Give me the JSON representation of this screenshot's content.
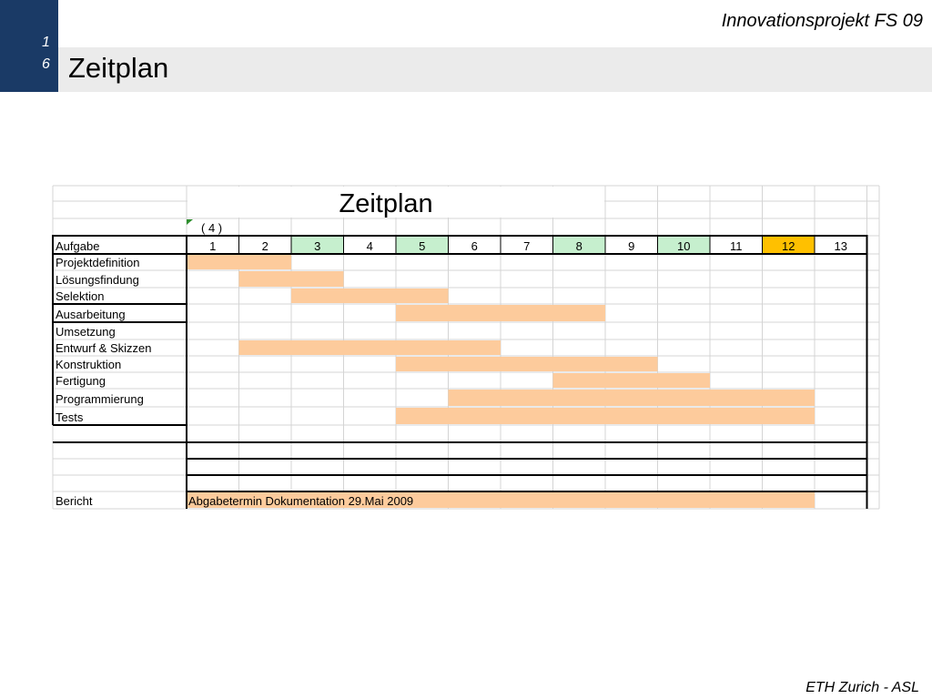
{
  "header": {
    "course": "Innovationsprojekt FS 09"
  },
  "slide_number": {
    "line1": "1",
    "line2": "6"
  },
  "title": "Zeitplan",
  "footer": "ETH Zurich - ASL",
  "sheet": {
    "title": "Zeitplan",
    "note": "( 4 )",
    "header_label": "Aufgabe",
    "weeks": [
      "1",
      "2",
      "3",
      "4",
      "5",
      "6",
      "7",
      "8",
      "9",
      "10",
      "11",
      "12",
      "13"
    ],
    "week_highlights": {
      "green": [
        "3",
        "5",
        "8",
        "10"
      ],
      "yellow": [
        "12"
      ]
    },
    "colors": {
      "bar": "#fdcb9c",
      "green": "#c6efce",
      "yellow": "#ffc000",
      "grid": "#d4d4d4",
      "border": "#000000"
    },
    "tasks": [
      {
        "name": "Projektdefinition",
        "start_week": 1,
        "end_week": 2
      },
      {
        "name": "Lösungsfindung",
        "start_week": 2,
        "end_week": 3
      },
      {
        "name": "Selektion",
        "start_week": 3,
        "end_week": 5
      },
      {
        "name": "Ausarbeitung",
        "start_week": 5,
        "end_week": 8
      },
      {
        "name": "Umsetzung",
        "start_week": null,
        "end_week": null
      },
      {
        "name": "Entwurf & Skizzen",
        "start_week": 2,
        "end_week": 6
      },
      {
        "name": "Konstruktion",
        "start_week": 5,
        "end_week": 9
      },
      {
        "name": "Fertigung",
        "start_week": 8,
        "end_week": 10
      },
      {
        "name": "Programmierung",
        "start_week": 6,
        "end_week": 12
      },
      {
        "name": "Tests",
        "start_week": 5,
        "end_week": 12
      },
      {
        "name": "",
        "start_week": null,
        "end_week": null
      },
      {
        "name": "",
        "start_week": null,
        "end_week": null
      },
      {
        "name": "",
        "start_week": null,
        "end_week": null
      },
      {
        "name": "",
        "start_week": null,
        "end_week": null
      }
    ],
    "report": {
      "label": "Bericht",
      "text": "Abgabetermin Dokumentation 29.Mai 2009",
      "start_week": 1,
      "end_week": 12
    }
  }
}
